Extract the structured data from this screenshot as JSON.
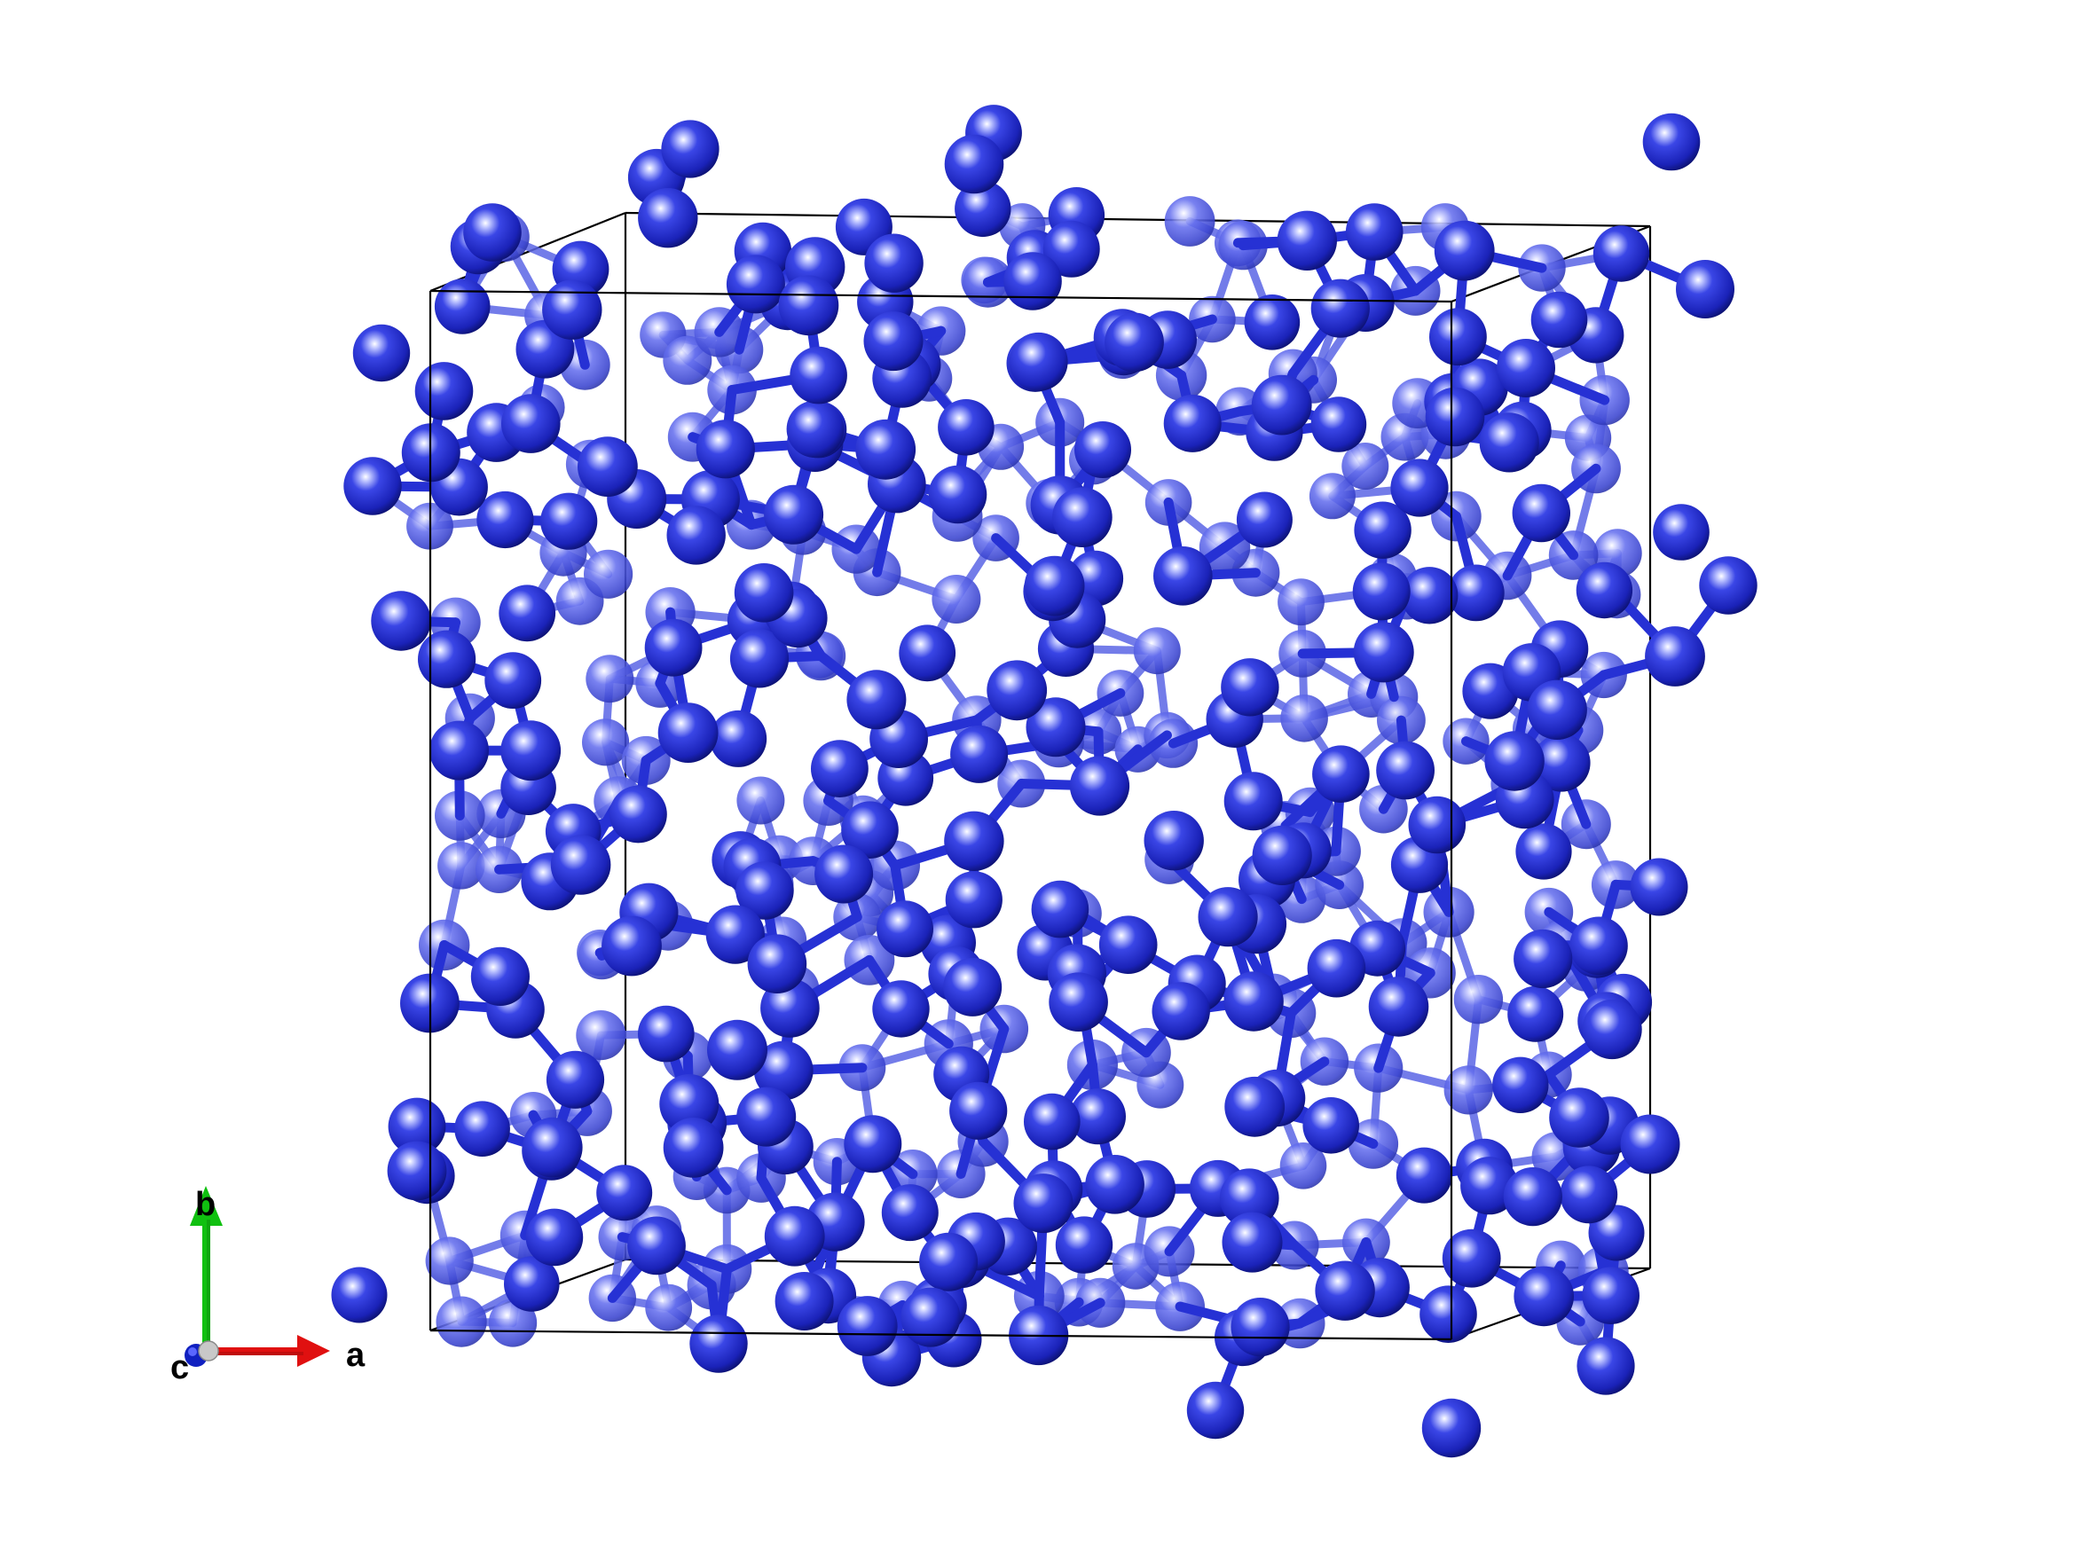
{
  "axes": {
    "a_label": "a",
    "b_label": "b",
    "c_label": "c"
  },
  "colors": {
    "background": "#ffffff",
    "atom": "#1f2ad6",
    "atom_dark": "#0d1380",
    "atom_highlight": "#ffffff",
    "bond": "#2a35d9",
    "cell_edge": "#000000",
    "axis_a": "#e01010",
    "axis_b": "#10c010",
    "axis_c": "#1020c0",
    "axis_origin": "#c8c8c8"
  }
}
